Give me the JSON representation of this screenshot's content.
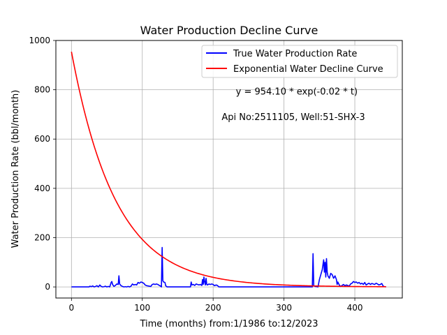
{
  "chart_data": {
    "type": "line",
    "title": "Water Production Decline Curve",
    "xlabel": "Time (months) from:1/1986 to:12/2023",
    "ylabel": "Water Production Rate (bbl/month)",
    "xlim": [
      -22,
      467
    ],
    "ylim": [
      -45,
      1000
    ],
    "xticks": [
      0,
      100,
      200,
      300,
      400
    ],
    "yticks": [
      0,
      200,
      400,
      600,
      800,
      1000
    ],
    "grid": true,
    "legend_position": "top-right",
    "annotations": [
      {
        "text": "y = 954.10 * exp(-0.02 * t)",
        "x": 232,
        "y": 780
      },
      {
        "text": "Api No:2511105, Well:51-SHX-3",
        "x": 212,
        "y": 677
      }
    ],
    "series": [
      {
        "name": "True Water Production Rate",
        "color": "#0000ff",
        "points": [
          [
            0,
            0
          ],
          [
            10,
            0
          ],
          [
            20,
            0
          ],
          [
            25,
            0
          ],
          [
            26,
            3
          ],
          [
            28,
            1
          ],
          [
            30,
            4
          ],
          [
            32,
            0
          ],
          [
            34,
            2
          ],
          [
            36,
            5
          ],
          [
            38,
            0
          ],
          [
            40,
            8
          ],
          [
            42,
            2
          ],
          [
            44,
            0
          ],
          [
            46,
            1
          ],
          [
            48,
            3
          ],
          [
            50,
            0
          ],
          [
            52,
            2
          ],
          [
            54,
            0
          ],
          [
            56,
            18
          ],
          [
            57,
            22
          ],
          [
            58,
            10
          ],
          [
            60,
            2
          ],
          [
            62,
            6
          ],
          [
            64,
            12
          ],
          [
            66,
            10
          ],
          [
            67,
            45
          ],
          [
            68,
            12
          ],
          [
            70,
            5
          ],
          [
            72,
            2
          ],
          [
            74,
            0
          ],
          [
            76,
            1
          ],
          [
            78,
            0
          ],
          [
            80,
            2
          ],
          [
            82,
            0
          ],
          [
            84,
            3
          ],
          [
            86,
            12
          ],
          [
            88,
            8
          ],
          [
            90,
            10
          ],
          [
            92,
            8
          ],
          [
            94,
            18
          ],
          [
            96,
            15
          ],
          [
            98,
            20
          ],
          [
            100,
            18
          ],
          [
            102,
            15
          ],
          [
            104,
            8
          ],
          [
            106,
            5
          ],
          [
            108,
            4
          ],
          [
            110,
            3
          ],
          [
            112,
            2
          ],
          [
            114,
            10
          ],
          [
            116,
            12
          ],
          [
            118,
            10
          ],
          [
            120,
            12
          ],
          [
            122,
            10
          ],
          [
            124,
            6
          ],
          [
            126,
            3
          ],
          [
            127,
            0
          ],
          [
            128,
            160
          ],
          [
            129,
            25
          ],
          [
            130,
            20
          ],
          [
            132,
            18
          ],
          [
            133,
            5
          ],
          [
            135,
            0
          ],
          [
            140,
            0
          ],
          [
            150,
            0
          ],
          [
            160,
            0
          ],
          [
            168,
            0
          ],
          [
            169,
            20
          ],
          [
            170,
            8
          ],
          [
            172,
            10
          ],
          [
            174,
            6
          ],
          [
            176,
            12
          ],
          [
            178,
            10
          ],
          [
            180,
            8
          ],
          [
            182,
            10
          ],
          [
            184,
            6
          ],
          [
            185,
            30
          ],
          [
            186,
            10
          ],
          [
            187,
            40
          ],
          [
            188,
            20
          ],
          [
            189,
            8
          ],
          [
            190,
            35
          ],
          [
            191,
            10
          ],
          [
            192,
            8
          ],
          [
            194,
            12
          ],
          [
            196,
            10
          ],
          [
            198,
            12
          ],
          [
            200,
            10
          ],
          [
            202,
            5
          ],
          [
            204,
            8
          ],
          [
            206,
            6
          ],
          [
            208,
            0
          ],
          [
            220,
            0
          ],
          [
            240,
            0
          ],
          [
            260,
            0
          ],
          [
            280,
            0
          ],
          [
            300,
            0
          ],
          [
            320,
            0
          ],
          [
            330,
            0
          ],
          [
            338,
            0
          ],
          [
            340,
            0
          ],
          [
            341,
            135
          ],
          [
            342,
            5
          ],
          [
            344,
            2
          ],
          [
            346,
            1
          ],
          [
            348,
            0
          ],
          [
            350,
            30
          ],
          [
            352,
            50
          ],
          [
            354,
            70
          ],
          [
            356,
            110
          ],
          [
            357,
            60
          ],
          [
            358,
            100
          ],
          [
            359,
            40
          ],
          [
            360,
            115
          ],
          [
            361,
            60
          ],
          [
            362,
            45
          ],
          [
            364,
            35
          ],
          [
            366,
            55
          ],
          [
            368,
            50
          ],
          [
            370,
            35
          ],
          [
            372,
            45
          ],
          [
            374,
            30
          ],
          [
            375,
            10
          ],
          [
            376,
            20
          ],
          [
            378,
            8
          ],
          [
            380,
            2
          ],
          [
            382,
            6
          ],
          [
            384,
            10
          ],
          [
            386,
            5
          ],
          [
            388,
            8
          ],
          [
            390,
            6
          ],
          [
            392,
            3
          ],
          [
            394,
            12
          ],
          [
            396,
            15
          ],
          [
            398,
            22
          ],
          [
            400,
            18
          ],
          [
            402,
            20
          ],
          [
            404,
            15
          ],
          [
            406,
            18
          ],
          [
            408,
            12
          ],
          [
            410,
            15
          ],
          [
            412,
            10
          ],
          [
            414,
            18
          ],
          [
            416,
            8
          ],
          [
            418,
            12
          ],
          [
            420,
            15
          ],
          [
            422,
            10
          ],
          [
            424,
            14
          ],
          [
            426,
            12
          ],
          [
            428,
            10
          ],
          [
            430,
            15
          ],
          [
            432,
            12
          ],
          [
            434,
            8
          ],
          [
            436,
            10
          ],
          [
            438,
            14
          ],
          [
            440,
            3
          ],
          [
            442,
            1
          ],
          [
            444,
            0
          ]
        ]
      },
      {
        "name": "Exponential Water Decline Curve",
        "color": "#ff0000",
        "a": 954.1,
        "b": 0.016,
        "x_range": [
          0,
          444
        ]
      }
    ]
  }
}
